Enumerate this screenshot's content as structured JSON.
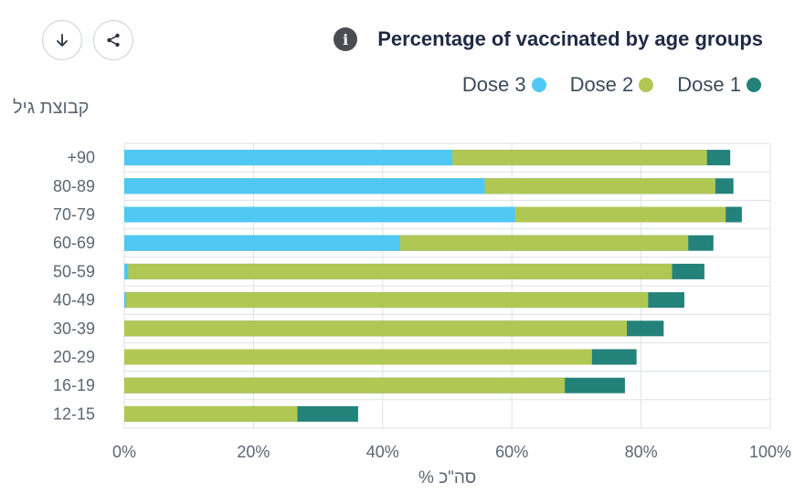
{
  "toolbar": {
    "download_icon": "arrow-down-icon",
    "share_icon": "share-icon"
  },
  "header": {
    "info_icon": "info-icon",
    "info_glyph": "i",
    "title": "Percentage of vaccinated by age groups"
  },
  "legend": [
    {
      "label": "Dose 3",
      "color": "#50c8f5"
    },
    {
      "label": "Dose 2",
      "color": "#b1c753"
    },
    {
      "label": "Dose 1",
      "color": "#23827a"
    }
  ],
  "chart_data": {
    "type": "bar",
    "orientation": "horizontal",
    "stacking": "overlay",
    "title": "Percentage of vaccinated by age groups",
    "ylabel": "קבוצת גיל",
    "xlabel": "% סה\"כ",
    "xlim": [
      0,
      100
    ],
    "x_ticks": [
      "0%",
      "20%",
      "40%",
      "60%",
      "80%",
      "100%"
    ],
    "grid": true,
    "legend_position": "top-right",
    "categories": [
      "+90",
      "80-89",
      "70-79",
      "60-69",
      "50-59",
      "40-49",
      "30-39",
      "20-29",
      "16-19",
      "12-15"
    ],
    "series": [
      {
        "name": "Dose 1",
        "color": "#23827a",
        "values": [
          93.8,
          94.3,
          95.6,
          91.2,
          89.8,
          86.7,
          83.5,
          79.3,
          77.5,
          36.2
        ]
      },
      {
        "name": "Dose 2",
        "color": "#b1c753",
        "values": [
          90.2,
          91.5,
          93.1,
          87.3,
          84.8,
          81.1,
          77.8,
          72.4,
          68.2,
          26.8
        ]
      },
      {
        "name": "Dose 3",
        "color": "#50c8f5",
        "values": [
          50.8,
          55.8,
          60.5,
          42.7,
          0.6,
          0.3,
          0,
          0,
          0,
          0
        ]
      }
    ]
  }
}
